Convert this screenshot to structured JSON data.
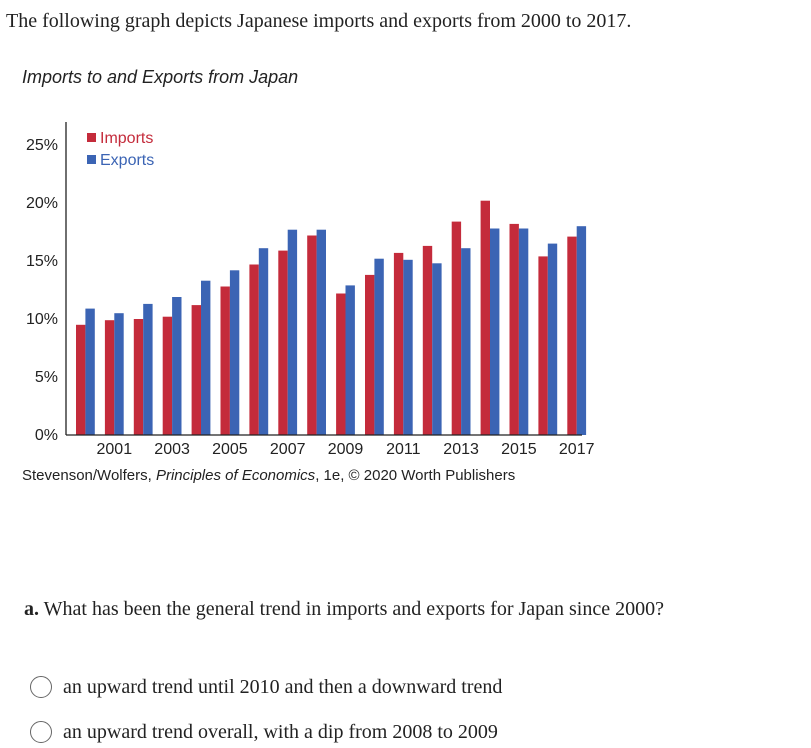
{
  "intro_text": "The following graph depicts Japanese imports and exports from 2000 to 2017.",
  "chart_title": "Imports to and Exports from Japan",
  "credit": {
    "prefix": "Stevenson/Wolfers, ",
    "book": "Principles of Economics",
    "suffix": ", 1e, © 2020 Worth Publishers"
  },
  "question": {
    "label": "a.",
    "text": " What has been the general trend in imports and exports for Japan since 2000?",
    "options": [
      "an upward trend until 2010 and then a downward trend",
      "an upward trend overall, with a dip from 2008 to 2009"
    ]
  },
  "colors": {
    "imports": "#c42b3b",
    "exports": "#3b64b4",
    "axis": "#222222"
  },
  "chart_data": {
    "type": "bar",
    "title": "Imports to and Exports from Japan",
    "categories": [
      "2000",
      "2001",
      "2002",
      "2003",
      "2004",
      "2005",
      "2006",
      "2007",
      "2008",
      "2009",
      "2010",
      "2011",
      "2012",
      "2013",
      "2014",
      "2015",
      "2016",
      "2017"
    ],
    "x_tick_labels": [
      "2001",
      "2003",
      "2005",
      "2007",
      "2009",
      "2011",
      "2013",
      "2015",
      "2017"
    ],
    "y_tick_labels": [
      "0%",
      "5%",
      "10%",
      "15%",
      "20%",
      "25%"
    ],
    "ylim": [
      0,
      25
    ],
    "legend_position": "top-left",
    "series": [
      {
        "name": "Imports",
        "values": [
          9.5,
          9.9,
          10.0,
          10.2,
          11.2,
          12.8,
          14.7,
          15.9,
          17.2,
          12.2,
          13.8,
          15.7,
          16.3,
          18.4,
          20.2,
          18.2,
          15.4,
          17.1
        ]
      },
      {
        "name": "Exports",
        "values": [
          10.9,
          10.5,
          11.3,
          11.9,
          13.3,
          14.2,
          16.1,
          17.7,
          17.7,
          12.9,
          15.2,
          15.1,
          14.8,
          16.1,
          17.8,
          17.8,
          16.5,
          18.0
        ]
      }
    ]
  }
}
